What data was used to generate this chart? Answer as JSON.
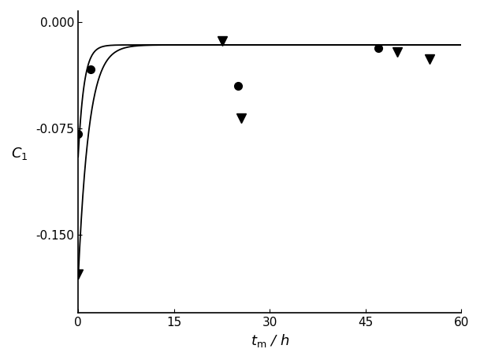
{
  "title": "",
  "xlabel": "$t_{\\mathrm{m}}$ / h",
  "ylabel": "$C_1$",
  "xlim": [
    0,
    60
  ],
  "ylim": [
    -0.205,
    0.008
  ],
  "yticks": [
    0.0,
    -0.075,
    -0.15
  ],
  "xticks": [
    0,
    15,
    30,
    45,
    60
  ],
  "batch1_data_x": [
    0.0,
    2.0,
    25.0,
    47.0
  ],
  "batch1_data_y": [
    -0.079,
    -0.033,
    -0.045,
    -0.018
  ],
  "batch2_data_x": [
    0.0,
    22.5,
    25.5,
    50.0,
    55.0
  ],
  "batch2_data_y": [
    -0.178,
    -0.013,
    -0.068,
    -0.021,
    -0.026
  ],
  "curve1_A": -0.079,
  "curve1_k": 1.1,
  "curve1_C": -0.016,
  "curve2_A": -0.165,
  "curve2_k": 0.6,
  "curve2_C": -0.016,
  "marker_color": "#000000",
  "line_color": "#000000",
  "background_color": "#ffffff"
}
